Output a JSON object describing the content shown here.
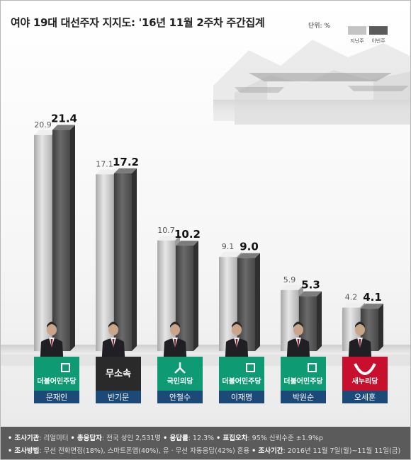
{
  "header": {
    "title": "여야 19대 대선주자 지지도: '16년 11월 2주차 주간집계",
    "unit": "단위: %"
  },
  "legend": {
    "prev_label": "지난주",
    "curr_label": "이번주",
    "prev_color": "#c4c4c4",
    "curr_color": "#5a5a5a"
  },
  "chart_data": {
    "type": "bar",
    "categories": [
      "문재인",
      "반기문",
      "안철수",
      "이재명",
      "박원순",
      "오세훈"
    ],
    "parties": [
      "더불어민주당",
      "무소속",
      "국민의당",
      "더불어민주당",
      "더불어민주당",
      "새누리당"
    ],
    "party_colors": [
      "#0e9a73",
      "#2a2a2a",
      "#0e9a73",
      "#0e9a73",
      "#0e9a73",
      "#c8102e"
    ],
    "series": [
      {
        "name": "지난주",
        "values": [
          20.9,
          17.1,
          10.7,
          9.1,
          5.9,
          4.2
        ]
      },
      {
        "name": "이번주",
        "values": [
          21.4,
          17.2,
          10.2,
          9.0,
          5.3,
          4.1
        ]
      }
    ],
    "value_labels": [
      [
        "20.9",
        "17.1",
        "10.7",
        "9.1",
        "5.9",
        "4.2"
      ],
      [
        "21.4",
        "17.2",
        "10.2",
        "9.0",
        "5.3",
        "4.1"
      ]
    ],
    "ylim": [
      0,
      25
    ],
    "grid": false,
    "legend_position": "top-right"
  },
  "footer": {
    "line1": [
      {
        "key": "• 조사기관",
        "value": ": 리얼미터"
      },
      {
        "key": "• 총응답자",
        "value": ": 전국 성인 2,531명"
      },
      {
        "key": "• 응답률",
        "value": ": 12.3%"
      },
      {
        "key": "• 표집오차",
        "value": ": 95% 신뢰수준 ±1.9%p"
      }
    ],
    "line2": [
      {
        "key": "• 조사방법",
        "value": ": 무선 전화면접(18%), 스마트폰앱(40%), 유 · 무선 자동응답(42%) 혼용"
      },
      {
        "key": "• 조사기간",
        "value": ": 2016년 11월 7일(월)~11월 11일(금)"
      }
    ]
  }
}
